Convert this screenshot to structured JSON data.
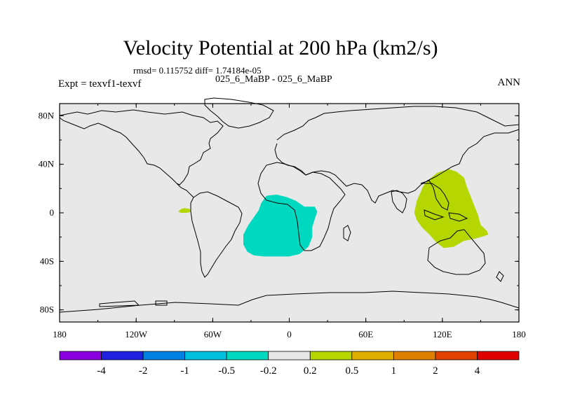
{
  "title": "Velocity Potential at 200 hPa (km2/s)",
  "stats": "rmsd= 0.115752  diff= 1.74184e-05",
  "case": "025_6_MaBP - 025_6_MaBP",
  "expt": "Expt = texvf1-texvf",
  "season": "ANN",
  "map": {
    "projection": "cylindrical-equidistant",
    "lon_range": [
      -180,
      180
    ],
    "lat_range": [
      -90,
      90
    ],
    "background_color": "#e8e8e8",
    "lat_ticks": [
      {
        "value": 80,
        "label": "80N"
      },
      {
        "value": 40,
        "label": "40N"
      },
      {
        "value": 0,
        "label": "0"
      },
      {
        "value": -40,
        "label": "40S"
      },
      {
        "value": -80,
        "label": "80S"
      }
    ],
    "lon_ticks": [
      {
        "value": -180,
        "label": "180"
      },
      {
        "value": -120,
        "label": "120W"
      },
      {
        "value": -60,
        "label": "60W"
      },
      {
        "value": 0,
        "label": "0"
      },
      {
        "value": 60,
        "label": "60E"
      },
      {
        "value": 120,
        "label": "120E"
      },
      {
        "value": 180,
        "label": "180"
      }
    ],
    "anomaly_regions": [
      {
        "name": "equatorial-east-pacific-positive",
        "level": "0.2 to 0.5",
        "color": "#b5d600",
        "polygon": [
          [
            -85,
            3
          ],
          [
            -82,
            4
          ],
          [
            -78,
            3
          ],
          [
            -77,
            1
          ],
          [
            -80,
            0
          ],
          [
            -85,
            0
          ],
          [
            -87,
            1
          ]
        ]
      },
      {
        "name": "tropical-atlantic-negative",
        "level": "-0.5 to -0.2",
        "color": "#00d9c0",
        "polygon": [
          [
            -18,
            14
          ],
          [
            -10,
            15
          ],
          [
            -2,
            13
          ],
          [
            5,
            10
          ],
          [
            12,
            5
          ],
          [
            20,
            5
          ],
          [
            22,
            1
          ],
          [
            20,
            -5
          ],
          [
            18,
            -12
          ],
          [
            18,
            -20
          ],
          [
            15,
            -28
          ],
          [
            8,
            -34
          ],
          [
            0,
            -36
          ],
          [
            -10,
            -36
          ],
          [
            -20,
            -36
          ],
          [
            -28,
            -35
          ],
          [
            -33,
            -32
          ],
          [
            -36,
            -26
          ],
          [
            -36,
            -18
          ],
          [
            -32,
            -10
          ],
          [
            -28,
            -4
          ],
          [
            -24,
            2
          ],
          [
            -22,
            8
          ]
        ]
      },
      {
        "name": "maritime-continent-positive",
        "level": "0.2 to 0.5",
        "color": "#b5d600",
        "polygon": [
          [
            125,
            36
          ],
          [
            131,
            34
          ],
          [
            137,
            29
          ],
          [
            139,
            22
          ],
          [
            142,
            14
          ],
          [
            145,
            6
          ],
          [
            148,
            -2
          ],
          [
            150,
            -10
          ],
          [
            155,
            -15
          ],
          [
            156,
            -18
          ],
          [
            150,
            -20
          ],
          [
            143,
            -22
          ],
          [
            137,
            -23
          ],
          [
            129,
            -28
          ],
          [
            121,
            -29
          ],
          [
            115,
            -24
          ],
          [
            110,
            -18
          ],
          [
            104,
            -12
          ],
          [
            100,
            -6
          ],
          [
            98,
            0
          ],
          [
            100,
            10
          ],
          [
            103,
            17
          ],
          [
            105,
            22
          ],
          [
            109,
            27
          ],
          [
            116,
            33
          ]
        ]
      }
    ]
  },
  "colorbar": {
    "colors": [
      "#8a00e0",
      "#2020e0",
      "#0080e0",
      "#00c0e0",
      "#00d9c0",
      "#e8e8e8",
      "#b5d600",
      "#e0b000",
      "#e08000",
      "#e04000",
      "#e00000"
    ],
    "labels": [
      "-4",
      "-2",
      "-1",
      "-0.5",
      "-0.2",
      "0.2",
      "0.5",
      "1",
      "2",
      "4"
    ]
  }
}
